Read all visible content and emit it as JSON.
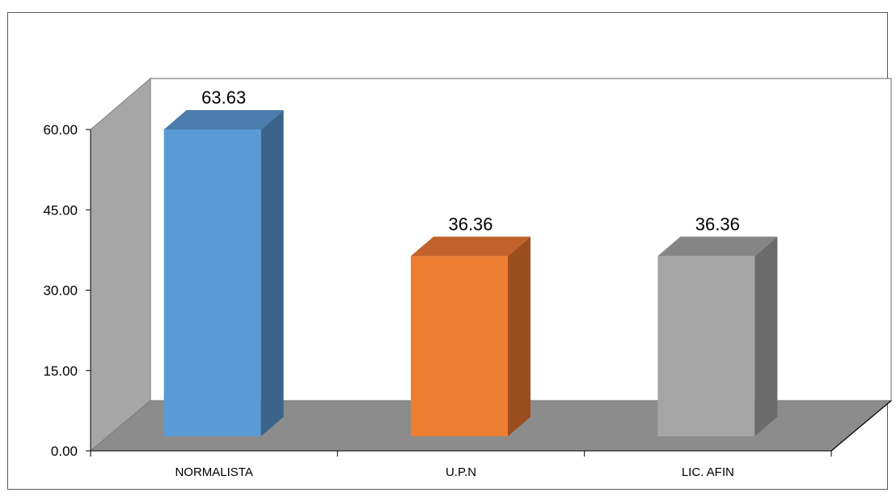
{
  "chart_data": {
    "type": "bar",
    "style": "3d-column",
    "title": "",
    "xlabel": "",
    "ylabel": "",
    "categories": [
      "NORMALISTA",
      "U.P.N",
      "LIC. AFIN"
    ],
    "values": [
      63.63,
      36.36,
      36.36
    ],
    "value_labels": [
      "63.63",
      "36.36",
      "36.36"
    ],
    "yticks": [
      0,
      15,
      30,
      45,
      60
    ],
    "ytick_labels": [
      "0.00",
      "15.00",
      "30.00",
      "45.00",
      "60.00"
    ],
    "ylim": [
      0,
      60
    ],
    "legend": "none",
    "colors": [
      {
        "front": "#5B9BD5",
        "side": "#3A648A",
        "top": "#4A7DAC"
      },
      {
        "front": "#ED7D31",
        "side": "#9C4D1D",
        "top": "#C0622A"
      },
      {
        "front": "#A5A5A5",
        "side": "#6B6B6B",
        "top": "#858585"
      }
    ],
    "walls": {
      "side": "#A6A6A6",
      "floor": "#8C8C8C",
      "back": "#FFFFFF"
    }
  }
}
